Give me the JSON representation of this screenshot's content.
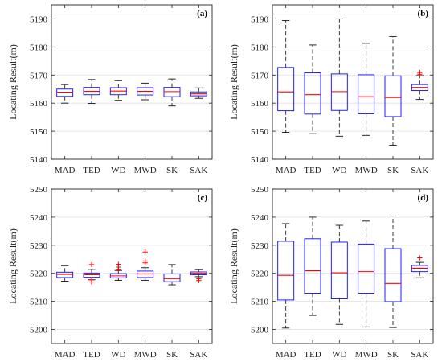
{
  "chart_data": [
    {
      "type": "box",
      "panel_label": "(a)",
      "ylabel": "Locating Result(m)",
      "ylim": [
        5140,
        5195
      ],
      "yticks": [
        5140,
        5150,
        5160,
        5170,
        5180,
        5190
      ],
      "grid": true,
      "categories": [
        "MAD",
        "TED",
        "WD",
        "MWD",
        "SK",
        "SAK"
      ],
      "boxes": [
        {
          "whislo": 5160.0,
          "q1": 5162.4,
          "med": 5163.9,
          "q3": 5165.0,
          "whishi": 5166.6,
          "fliers": []
        },
        {
          "whislo": 5159.9,
          "q1": 5163.0,
          "med": 5164.2,
          "q3": 5165.6,
          "whishi": 5168.4,
          "fliers": []
        },
        {
          "whislo": 5161.0,
          "q1": 5163.0,
          "med": 5164.3,
          "q3": 5165.5,
          "whishi": 5168.0,
          "fliers": []
        },
        {
          "whislo": 5161.2,
          "q1": 5162.9,
          "med": 5164.2,
          "q3": 5165.5,
          "whishi": 5167.1,
          "fliers": []
        },
        {
          "whislo": 5159.0,
          "q1": 5162.3,
          "med": 5164.1,
          "q3": 5165.6,
          "whishi": 5168.6,
          "fliers": []
        },
        {
          "whislo": 5161.7,
          "q1": 5162.6,
          "med": 5163.3,
          "q3": 5164.0,
          "whishi": 5165.4,
          "fliers": []
        }
      ]
    },
    {
      "type": "box",
      "panel_label": "(b)",
      "ylabel": "Locating Result(m)",
      "ylim": [
        5140,
        5195
      ],
      "yticks": [
        5140,
        5150,
        5160,
        5170,
        5180,
        5190
      ],
      "grid": true,
      "categories": [
        "MAD",
        "TED",
        "WD",
        "MWD",
        "SK",
        "SAK"
      ],
      "boxes": [
        {
          "whislo": 5149.6,
          "q1": 5157.3,
          "med": 5164.0,
          "q3": 5172.7,
          "whishi": 5189.4,
          "fliers": []
        },
        {
          "whislo": 5149.1,
          "q1": 5156.1,
          "med": 5163.0,
          "q3": 5170.8,
          "whishi": 5180.7,
          "fliers": []
        },
        {
          "whislo": 5148.2,
          "q1": 5157.4,
          "med": 5164.1,
          "q3": 5170.4,
          "whishi": 5190.0,
          "fliers": []
        },
        {
          "whislo": 5148.5,
          "q1": 5156.2,
          "med": 5162.3,
          "q3": 5170.1,
          "whishi": 5181.3,
          "fliers": []
        },
        {
          "whislo": 5145.0,
          "q1": 5155.2,
          "med": 5162.0,
          "q3": 5169.7,
          "whishi": 5183.7,
          "fliers": []
        },
        {
          "whislo": 5161.3,
          "q1": 5164.5,
          "med": 5165.6,
          "q3": 5166.6,
          "whishi": 5169.8,
          "fliers": [
            5170.3,
            5170.9
          ]
        }
      ]
    },
    {
      "type": "box",
      "panel_label": "(c)",
      "ylabel": "Locating Result(m)",
      "ylim": [
        5195,
        5250
      ],
      "yticks": [
        5200,
        5210,
        5220,
        5230,
        5240,
        5250
      ],
      "grid": true,
      "categories": [
        "MAD",
        "TED",
        "WD",
        "MWD",
        "SK",
        "SAK"
      ],
      "boxes": [
        {
          "whislo": 5217.2,
          "q1": 5218.5,
          "med": 5219.6,
          "q3": 5220.4,
          "whishi": 5222.7,
          "fliers": []
        },
        {
          "whislo": 5217.7,
          "q1": 5218.6,
          "med": 5219.5,
          "q3": 5220.1,
          "whishi": 5221.4,
          "fliers": [
            5223.1,
            5217.7,
            5216.9
          ]
        },
        {
          "whislo": 5217.5,
          "q1": 5218.4,
          "med": 5219.1,
          "q3": 5219.9,
          "whishi": 5221.0,
          "fliers": [
            5221.3,
            5222.2,
            5223.2
          ]
        },
        {
          "whislo": 5217.5,
          "q1": 5218.5,
          "med": 5219.8,
          "q3": 5220.8,
          "whishi": 5222.0,
          "fliers": [
            5223.7,
            5224.4,
            5227.6
          ]
        },
        {
          "whislo": 5215.9,
          "q1": 5217.0,
          "med": 5218.1,
          "q3": 5219.8,
          "whishi": 5223.1,
          "fliers": []
        },
        {
          "whislo": 5218.8,
          "q1": 5219.5,
          "med": 5220.0,
          "q3": 5220.5,
          "whishi": 5221.3,
          "fliers": [
            5218.1,
            5217.4
          ]
        }
      ]
    },
    {
      "type": "box",
      "panel_label": "(d)",
      "ylabel": "Locating Result(m)",
      "ylim": [
        5195,
        5250
      ],
      "yticks": [
        5200,
        5210,
        5220,
        5230,
        5240,
        5250
      ],
      "grid": true,
      "categories": [
        "MAD",
        "TED",
        "WD",
        "MWD",
        "SK",
        "SAK"
      ],
      "boxes": [
        {
          "whislo": 5200.5,
          "q1": 5210.5,
          "med": 5219.3,
          "q3": 5231.4,
          "whishi": 5237.7,
          "fliers": []
        },
        {
          "whislo": 5205.0,
          "q1": 5212.9,
          "med": 5220.9,
          "q3": 5232.3,
          "whishi": 5240.0,
          "fliers": []
        },
        {
          "whislo": 5201.8,
          "q1": 5210.9,
          "med": 5220.2,
          "q3": 5231.1,
          "whishi": 5237.1,
          "fliers": []
        },
        {
          "whislo": 5200.9,
          "q1": 5212.9,
          "med": 5220.6,
          "q3": 5230.4,
          "whishi": 5238.6,
          "fliers": []
        },
        {
          "whislo": 5200.7,
          "q1": 5209.9,
          "med": 5216.4,
          "q3": 5228.8,
          "whishi": 5240.4,
          "fliers": []
        },
        {
          "whislo": 5218.4,
          "q1": 5220.6,
          "med": 5221.8,
          "q3": 5222.8,
          "whishi": 5223.9,
          "fliers": [
            5225.5
          ]
        }
      ]
    }
  ]
}
